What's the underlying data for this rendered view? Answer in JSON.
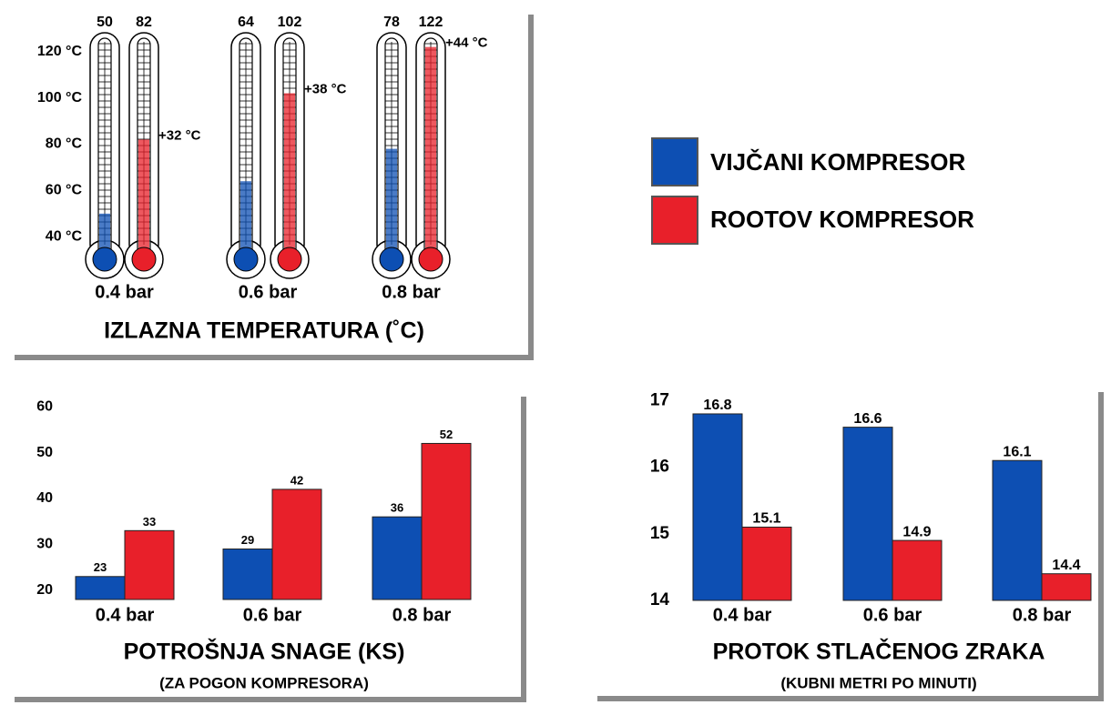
{
  "chart_data": [
    {
      "type": "thermometer",
      "title": "IZLAZNA TEMPERATURA (˚C)",
      "categories": [
        "0.4 bar",
        "0.6 bar",
        "0.8 bar"
      ],
      "series": [
        {
          "name": "VIJČANI KOMPRESOR",
          "color": "#0d4fb3",
          "values": [
            50,
            64,
            78
          ]
        },
        {
          "name": "ROOTOV KOMPRESOR",
          "color": "#e8202a",
          "values": [
            82,
            102,
            122
          ]
        }
      ],
      "annotations": [
        "+32 °C",
        "+38 °C",
        "+44 °C"
      ],
      "ylim": [
        35,
        125
      ],
      "yticks": [
        {
          "value": 40,
          "label": "40 °C"
        },
        {
          "value": 60,
          "label": "60 °C"
        },
        {
          "value": 80,
          "label": "80 °C"
        },
        {
          "value": 100,
          "label": "100 °C"
        },
        {
          "value": 120,
          "label": "120 °C"
        }
      ]
    },
    {
      "type": "bar",
      "title": "POTROŠNJA SNAGE (KS)",
      "subtitle": "(ZA POGON KOMPRESORA)",
      "categories": [
        "0.4 bar",
        "0.6 bar",
        "0.8 bar"
      ],
      "series": [
        {
          "color": "#0d4fb3",
          "values": [
            23,
            29,
            36
          ]
        },
        {
          "color": "#e8202a",
          "values": [
            33,
            42,
            52
          ]
        }
      ],
      "ylim": [
        18,
        62
      ],
      "yticks": [
        20,
        30,
        40,
        50,
        60
      ]
    },
    {
      "type": "bar",
      "title": "PROTOK STLAČENOG ZRAKA",
      "subtitle": "(KUBNI METRI PO MINUTI)",
      "categories": [
        "0.4 bar",
        "0.6 bar",
        "0.8 bar"
      ],
      "series": [
        {
          "color": "#0d4fb3",
          "values": [
            16.8,
            16.6,
            16.1
          ]
        },
        {
          "color": "#e8202a",
          "values": [
            15.1,
            14.9,
            14.4
          ]
        }
      ],
      "ylim": [
        14,
        17.1
      ],
      "yticks": [
        14,
        15,
        16,
        17
      ]
    }
  ]
}
